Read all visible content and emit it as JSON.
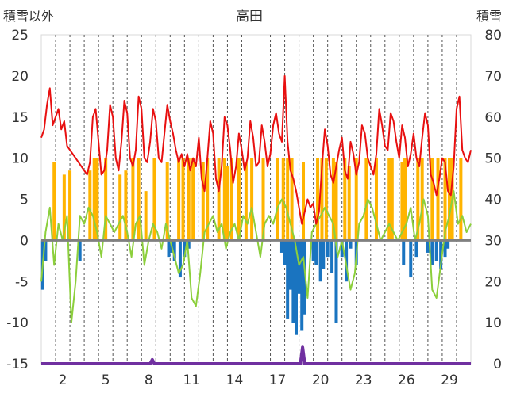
{
  "chart_data": {
    "type": "line",
    "title": "高田",
    "ylabel_left": "積雪以外",
    "ylabel_right": "積雪",
    "y_left_range": [
      -15,
      25
    ],
    "y_right_range": [
      0,
      80
    ],
    "y_left_ticks": [
      "25",
      "20",
      "15",
      "10",
      "5",
      "0",
      "-5",
      "-10",
      "-15"
    ],
    "y_right_ticks": [
      "80",
      "70",
      "60",
      "50",
      "40",
      "30",
      "20",
      "10",
      "0"
    ],
    "x_range": [
      0,
      30
    ],
    "x_ticks": [
      "2",
      "5",
      "8",
      "11",
      "14",
      "17",
      "20",
      "23",
      "26",
      "29"
    ],
    "x_tick_values": [
      2,
      5,
      8,
      11,
      14,
      17,
      20,
      23,
      26,
      29
    ],
    "grid": "vertical dashed daily lines",
    "colors": {
      "temperature": "#e81010",
      "sunshine": "#ffb400",
      "temp_secondary": "#8ccf3c",
      "precipitation": "#1a74c0",
      "snow_depth": "#7030a0",
      "zero_line": "#808080",
      "grid": "#555555"
    },
    "series": [
      {
        "key": "temperature",
        "axis": "left",
        "style": "line",
        "x": [
          0.0,
          0.2,
          0.4,
          0.6,
          0.8,
          1.0,
          1.2,
          1.4,
          1.6,
          1.8,
          2.0,
          2.2,
          3.0,
          3.2,
          3.4,
          3.6,
          3.8,
          4.0,
          4.2,
          4.4,
          4.6,
          4.8,
          5.0,
          5.2,
          5.4,
          5.6,
          5.8,
          6.0,
          6.2,
          6.4,
          6.6,
          6.8,
          7.0,
          7.2,
          7.4,
          7.6,
          7.8,
          8.0,
          8.2,
          8.4,
          8.6,
          8.8,
          9.0,
          9.2,
          9.4,
          9.6,
          9.8,
          10.0,
          10.2,
          10.4,
          10.6,
          10.8,
          11.0,
          11.2,
          11.4,
          11.6,
          11.8,
          12.0,
          12.2,
          12.4,
          12.6,
          12.8,
          13.0,
          13.2,
          13.4,
          13.6,
          13.8,
          14.0,
          14.2,
          14.4,
          14.6,
          14.8,
          15.0,
          15.2,
          15.4,
          15.6,
          15.8,
          16.0,
          16.2,
          16.4,
          16.6,
          16.8,
          17.0,
          17.2,
          17.4,
          17.6,
          17.8,
          18.0,
          18.2,
          18.4,
          18.6,
          18.8,
          19.0,
          19.2,
          19.4,
          19.6,
          19.8,
          20.0,
          20.2,
          20.4,
          20.6,
          20.8,
          21.0,
          21.2,
          21.4,
          21.6,
          21.8,
          22.0,
          22.2,
          22.4,
          22.6,
          22.8,
          23.0,
          23.2,
          23.4,
          23.6,
          23.8,
          24.0,
          24.2,
          24.4,
          24.6,
          24.8,
          25.0,
          25.2,
          25.4,
          25.6,
          25.8,
          26.0,
          26.2,
          26.4,
          26.6,
          26.8,
          27.0,
          27.2,
          27.4,
          27.6,
          27.8,
          28.0,
          28.2,
          28.4,
          28.6,
          28.8,
          29.0,
          29.2,
          29.4,
          29.6,
          29.8,
          30.0
        ],
        "values": [
          12.5,
          13.5,
          16.5,
          18.5,
          14.0,
          15.0,
          16.0,
          13.5,
          14.5,
          11.5,
          11.0,
          10.5,
          8.5,
          8.0,
          9.5,
          15.0,
          16.0,
          12.0,
          8.0,
          8.5,
          11.0,
          16.5,
          15.0,
          10.0,
          8.5,
          12.0,
          17.0,
          15.5,
          10.0,
          9.0,
          11.0,
          17.5,
          16.0,
          10.0,
          9.5,
          12.0,
          16.0,
          14.5,
          10.0,
          9.5,
          13.0,
          16.5,
          14.5,
          13.0,
          11.0,
          9.5,
          10.5,
          9.0,
          10.5,
          8.5,
          10.0,
          9.0,
          12.5,
          7.5,
          6.0,
          10.0,
          14.5,
          13.0,
          7.5,
          6.0,
          9.0,
          15.0,
          14.0,
          11.0,
          7.0,
          9.0,
          13.0,
          11.0,
          8.5,
          10.0,
          14.5,
          12.5,
          9.0,
          9.5,
          14.0,
          12.0,
          9.0,
          10.5,
          14.0,
          15.5,
          13.0,
          12.0,
          20.0,
          12.0,
          8.5,
          7.5,
          6.0,
          4.0,
          2.0,
          3.5,
          5.0,
          4.0,
          4.5,
          2.0,
          3.5,
          9.0,
          13.5,
          11.5,
          8.0,
          7.0,
          9.0,
          11.0,
          12.5,
          8.5,
          7.5,
          12.0,
          10.5,
          8.0,
          9.5,
          14.0,
          13.0,
          10.0,
          9.0,
          8.0,
          10.5,
          16.0,
          14.0,
          11.5,
          11.0,
          15.5,
          14.5,
          12.0,
          10.0,
          14.0,
          12.5,
          9.0,
          10.5,
          13.0,
          10.0,
          9.0,
          12.5,
          15.5,
          14.0,
          8.0,
          7.0,
          5.5,
          7.5,
          10.0,
          9.5,
          6.0,
          5.5,
          9.0,
          16.0,
          17.5,
          11.0,
          10.0,
          9.5,
          11.0
        ]
      },
      {
        "key": "temp_secondary",
        "axis": "left",
        "style": "line",
        "x": [
          0.0,
          0.3,
          0.6,
          0.9,
          1.2,
          1.5,
          1.8,
          2.1,
          2.4,
          2.7,
          3.0,
          3.3,
          3.6,
          3.9,
          4.2,
          4.5,
          4.8,
          5.1,
          5.4,
          5.7,
          6.0,
          6.3,
          6.6,
          6.9,
          7.2,
          7.5,
          7.8,
          8.1,
          8.4,
          8.7,
          9.0,
          9.3,
          9.6,
          9.9,
          10.2,
          10.5,
          10.8,
          11.1,
          11.4,
          11.7,
          12.0,
          12.3,
          12.6,
          12.9,
          13.2,
          13.5,
          13.8,
          14.1,
          14.4,
          14.7,
          15.0,
          15.3,
          15.6,
          15.9,
          16.2,
          16.5,
          16.8,
          17.1,
          17.4,
          17.7,
          18.0,
          18.3,
          18.6,
          18.9,
          19.2,
          19.5,
          19.8,
          20.1,
          20.4,
          20.7,
          21.0,
          21.3,
          21.6,
          21.9,
          22.2,
          22.5,
          22.8,
          23.1,
          23.4,
          23.7,
          24.0,
          24.3,
          24.6,
          24.9,
          25.2,
          25.5,
          25.8,
          26.1,
          26.4,
          26.7,
          27.0,
          27.3,
          27.6,
          27.9,
          28.2,
          28.5,
          28.8,
          29.1,
          29.4,
          29.7,
          30.0
        ],
        "values": [
          -5,
          1,
          4,
          -3,
          2,
          0,
          3,
          -10,
          -5,
          3,
          2,
          4,
          3,
          1,
          -2,
          3,
          2,
          1,
          2,
          3,
          1,
          -2,
          2,
          3,
          -3,
          0,
          2,
          1,
          -1,
          2,
          0,
          -2,
          -4,
          -3,
          0,
          -7,
          -8,
          -4,
          1,
          2,
          3,
          1,
          2,
          -1,
          1,
          2,
          0,
          3,
          2,
          4,
          1,
          -2,
          2,
          3,
          2,
          4,
          5,
          4,
          2,
          0,
          -3,
          -2,
          -7,
          1,
          2,
          3,
          4,
          3,
          2,
          -2,
          0,
          -3,
          -6,
          -4,
          2,
          3,
          5,
          4,
          2,
          0,
          1,
          2,
          1,
          0,
          1,
          2,
          4,
          0,
          2,
          5,
          3,
          -6,
          -7,
          -3,
          1,
          3,
          6,
          2,
          3,
          1,
          2
        ]
      },
      {
        "key": "sunshine",
        "axis": "left",
        "style": "bar",
        "x": [
          0.9,
          1.6,
          2.0,
          3.4,
          3.7,
          3.9,
          4.5,
          5.5,
          5.9,
          6.4,
          6.8,
          7.3,
          7.9,
          8.8,
          9.6,
          9.9,
          10.3,
          10.6,
          11.3,
          11.6,
          12.4,
          12.8,
          13.0,
          13.3,
          13.8,
          14.3,
          14.7,
          15.5,
          16.5,
          16.9,
          17.2,
          17.5,
          18.3,
          19.3,
          19.6,
          19.9,
          20.4,
          20.6,
          21.2,
          21.5,
          22.0,
          22.7,
          23.4,
          24.3,
          24.5,
          25.2,
          25.4,
          26.3,
          26.6,
          27.3,
          27.7,
          28.2,
          28.5,
          28.7,
          29.3
        ],
        "values": [
          9.5,
          8.0,
          8.5,
          8.5,
          10.0,
          10.0,
          10.0,
          8.0,
          8.5,
          10.0,
          10.0,
          6.0,
          10.0,
          9.5,
          10.0,
          10.0,
          10.0,
          10.0,
          9.5,
          10.0,
          10.0,
          10.0,
          9.0,
          10.0,
          10.0,
          9.5,
          10.0,
          10.0,
          10.0,
          10.0,
          10.0,
          10.0,
          9.5,
          10.0,
          10.0,
          10.0,
          10.0,
          9.5,
          10.0,
          9.0,
          10.0,
          10.0,
          10.0,
          10.0,
          10.0,
          9.5,
          10.0,
          10.0,
          10.0,
          10.0,
          10.0,
          10.0,
          10.0,
          10.0,
          10.0
        ]
      },
      {
        "key": "precipitation",
        "axis": "left",
        "style": "bar",
        "x": [
          0.1,
          0.3,
          2.7,
          8.9,
          9.1,
          9.3,
          9.7,
          10.0,
          10.3,
          16.8,
          17.0,
          17.2,
          17.4,
          17.6,
          17.8,
          18.0,
          18.2,
          18.4,
          19.0,
          19.2,
          19.5,
          19.7,
          20.0,
          20.3,
          20.6,
          21.0,
          21.3,
          21.6,
          22.0,
          25.3,
          25.8,
          26.2,
          27.0,
          27.3,
          27.6,
          27.9,
          28.2,
          28.4
        ],
        "values": [
          -6.0,
          -2.5,
          -2.5,
          -2.0,
          -1.5,
          -2.5,
          -4.5,
          -2.0,
          -1.0,
          -1.5,
          -3.0,
          -9.5,
          -6.0,
          -10.0,
          -11.5,
          -6.5,
          -11.0,
          -9.0,
          -2.5,
          -3.0,
          -5.0,
          -3.5,
          -2.0,
          -4.0,
          -10.0,
          -2.0,
          -5.0,
          -1.0,
          -3.0,
          -3.0,
          -4.5,
          -2.0,
          -1.5,
          -3.0,
          -2.5,
          -3.5,
          -2.0,
          -1.0
        ]
      },
      {
        "key": "snow_depth",
        "axis": "right",
        "style": "line",
        "x": [
          0.0,
          7.6,
          7.75,
          7.9,
          18.1,
          18.25,
          18.4,
          30.0
        ],
        "values": [
          0,
          0,
          1,
          0,
          0,
          4,
          0,
          0
        ]
      }
    ]
  }
}
